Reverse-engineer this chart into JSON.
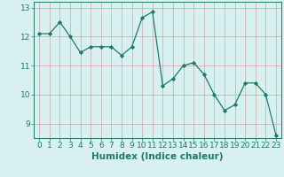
{
  "x": [
    0,
    1,
    2,
    3,
    4,
    5,
    6,
    7,
    8,
    9,
    10,
    11,
    12,
    13,
    14,
    15,
    16,
    17,
    18,
    19,
    20,
    21,
    22,
    23
  ],
  "y": [
    12.1,
    12.1,
    12.5,
    12.0,
    11.45,
    11.65,
    11.65,
    11.65,
    11.35,
    11.65,
    12.65,
    12.85,
    10.3,
    10.55,
    11.0,
    11.1,
    10.7,
    10.0,
    9.45,
    9.65,
    10.4,
    10.4,
    10.0,
    8.6
  ],
  "line_color": "#1a7a6e",
  "marker": "D",
  "marker_size": 2.2,
  "bg_color": "#d9f0f0",
  "grid_color": "#c8a8a8",
  "xlabel": "Humidex (Indice chaleur)",
  "ylim": [
    8.5,
    13.2
  ],
  "xlim": [
    -0.5,
    23.5
  ],
  "yticks": [
    9,
    10,
    11,
    12,
    13
  ],
  "xticks": [
    0,
    1,
    2,
    3,
    4,
    5,
    6,
    7,
    8,
    9,
    10,
    11,
    12,
    13,
    14,
    15,
    16,
    17,
    18,
    19,
    20,
    21,
    22,
    23
  ],
  "tick_color": "#1a7a6e",
  "label_fontsize": 7.5,
  "tick_fontsize": 6.5
}
